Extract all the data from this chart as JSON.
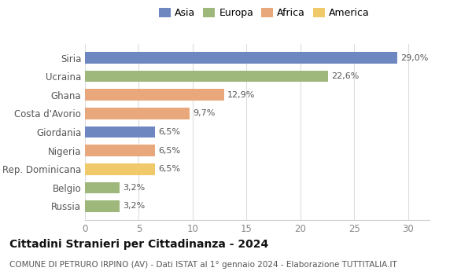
{
  "categories": [
    "Russia",
    "Belgio",
    "Rep. Dominicana",
    "Nigeria",
    "Giordania",
    "Costa d'Avorio",
    "Ghana",
    "Ucraina",
    "Siria"
  ],
  "values": [
    3.2,
    3.2,
    6.5,
    6.5,
    6.5,
    9.7,
    12.9,
    22.6,
    29.0
  ],
  "colors": [
    "#9db87a",
    "#9db87a",
    "#f0c96a",
    "#e8a87c",
    "#6e87c0",
    "#e8a87c",
    "#e8a87c",
    "#9db87a",
    "#6e87c0"
  ],
  "labels": [
    "3,2%",
    "3,2%",
    "6,5%",
    "6,5%",
    "6,5%",
    "9,7%",
    "12,9%",
    "22,6%",
    "29,0%"
  ],
  "legend": [
    {
      "label": "Asia",
      "color": "#6e87c0"
    },
    {
      "label": "Europa",
      "color": "#9db87a"
    },
    {
      "label": "Africa",
      "color": "#e8a87c"
    },
    {
      "label": "America",
      "color": "#f0c96a"
    }
  ],
  "xlim": [
    0,
    32
  ],
  "xticks": [
    0,
    5,
    10,
    15,
    20,
    25,
    30
  ],
  "title": "Cittadini Stranieri per Cittadinanza - 2024",
  "subtitle": "COMUNE DI PETRURO IRPINO (AV) - Dati ISTAT al 1° gennaio 2024 - Elaborazione TUTTITALIA.IT",
  "bg_color": "#ffffff",
  "bar_height": 0.62,
  "title_fontsize": 10,
  "subtitle_fontsize": 7.5,
  "label_fontsize": 8,
  "ytick_fontsize": 8.5,
  "xtick_fontsize": 8.5,
  "legend_fontsize": 9
}
